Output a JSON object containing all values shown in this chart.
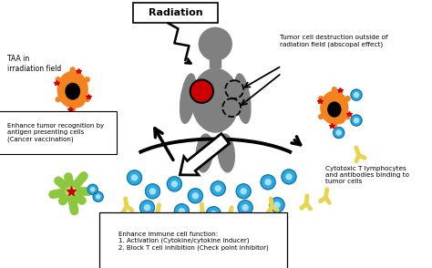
{
  "title": "Radiation",
  "bg_color": "#ffffff",
  "labels": {
    "taa": "TAA in\nirradiation field",
    "enhance_recognition": "Enhance tumor recognition by\nantigen presenting cells\n(Cancer vaccination)",
    "abscopal": "Tumor cell destruction outside of\nradiation field (abscopal effect)",
    "cytotoxic": "Cytotoxic T lymphocytes\nand antibodies binding to\ntumor cells",
    "enhance_immune": "Enhance immune cell function:\n1. Activation (Cytokine/cytokine inducer)\n2. Block T cell inhibition (Check point inhibitor)"
  },
  "colors": {
    "orange_cell": "#F4831F",
    "green_cell": "#8DC63F",
    "body": "#808080",
    "tumor_red": "#CC0000",
    "blue_circle": "#29ABE2",
    "blue_inner": "#a8dff5",
    "yellow_antibody": "#E8D44D",
    "black": "#000000",
    "white": "#ffffff",
    "text": "#000000"
  }
}
